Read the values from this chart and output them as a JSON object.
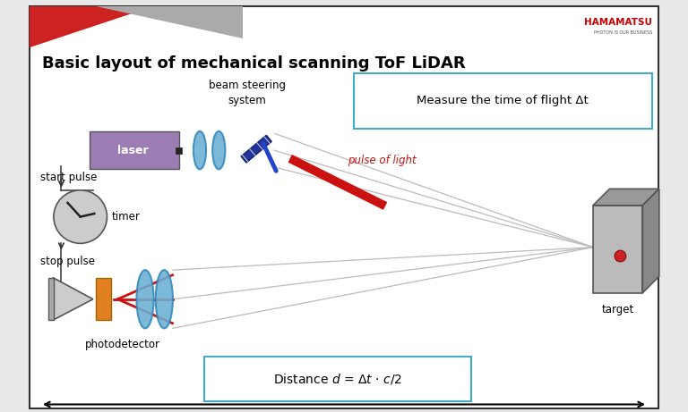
{
  "title": "Basic layout of mechanical scanning ToF LiDAR",
  "bg_color": "#e8e8e8",
  "canvas_bg": "#ffffff",
  "hamamatsu_text": "HAMAMATSU",
  "hamamatsu_sub": "PHOTON IS OUR BUSINESS",
  "measure_box_text": "Measure the time of flight Δt",
  "laser_label": "laser",
  "timer_label": "timer",
  "start_pulse_label": "start pulse",
  "stop_pulse_label": "stop pulse",
  "photodetector_label": "photodetector",
  "target_label": "target",
  "pulse_of_light_label": "pulse of light",
  "beam_steering_label_1": "beam steering",
  "beam_steering_label_2": "system",
  "header_red": "#cc0000",
  "laser_box_color": "#9b7db4",
  "lens_color": "#6ab0d4",
  "pulse_color": "#cc1111",
  "target_dot_color": "#cc2222",
  "orange_rect_color": "#e08020",
  "clock_color": "#cccccc",
  "detector_color": "#cccccc",
  "red_line_color": "#cc1111"
}
